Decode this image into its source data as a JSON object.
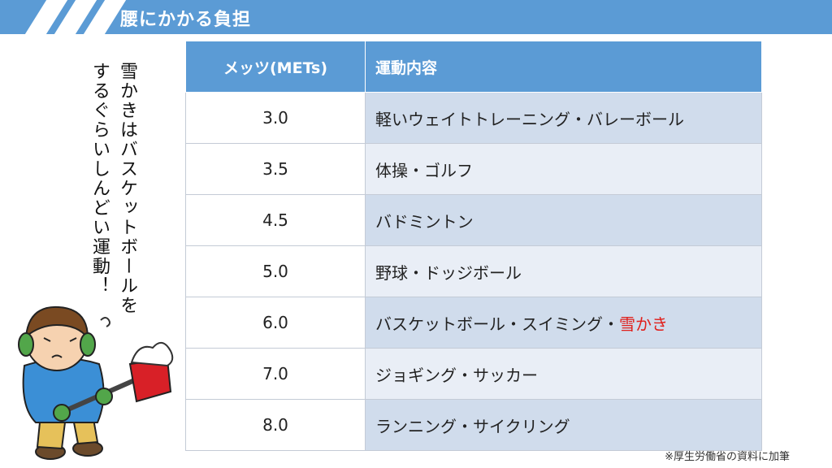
{
  "header": {
    "title": "腰にかかる負担"
  },
  "table": {
    "headers": [
      "メッツ(METs)",
      "運動内容"
    ],
    "rows": [
      {
        "mets": "3.0",
        "activity": "軽いウェイトトレーニング・バレーボール"
      },
      {
        "mets": "3.5",
        "activity": "体操・ゴルフ"
      },
      {
        "mets": "4.5",
        "activity": "バドミントン"
      },
      {
        "mets": "5.0",
        "activity": "野球・ドッジボール"
      },
      {
        "mets": "6.0",
        "activity": "バスケットボール・スイミング・",
        "highlight": "雪かき",
        "highlight_color": "#e0201c"
      },
      {
        "mets": "7.0",
        "activity": "ジョギング・サッカー"
      },
      {
        "mets": "8.0",
        "activity": "ランニング・サイクリング"
      }
    ]
  },
  "callout": {
    "line1": "雪かきはバスケットボール",
    "line1_end": "を",
    "line2": "するぐらいしんどい運動！"
  },
  "source_note": "※厚生労働省の資料に加筆",
  "colors": {
    "accent": "#5b9bd5",
    "row_dark": "#d0dcec",
    "row_light": "#e9eef6",
    "highlight": "#e0201c"
  },
  "illustration": {
    "icon": "child-shoveling-snow-illustration"
  }
}
